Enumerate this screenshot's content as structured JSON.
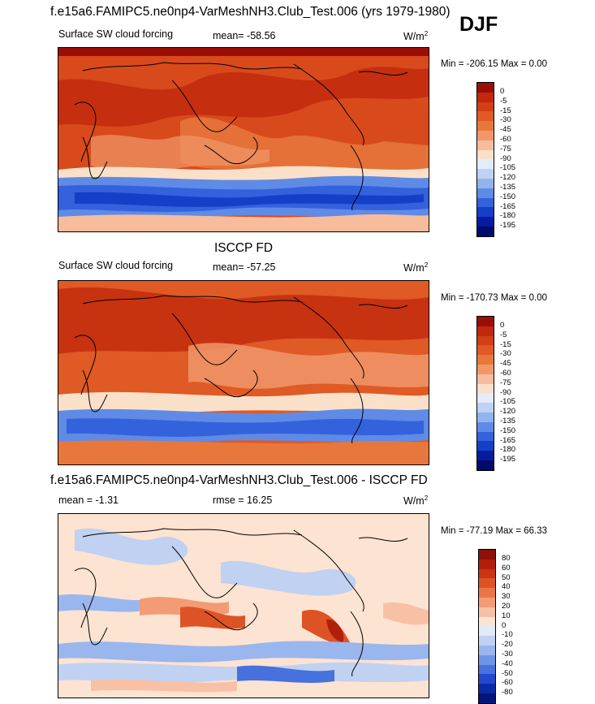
{
  "header": {
    "title": "f.e15a6.FAMIPC5.ne0np4-VarMeshNH3.Club_Test.006 (yrs 1979-1980)",
    "season": "DJF"
  },
  "panels": [
    {
      "heading": "",
      "left_label": "Surface SW cloud forcing",
      "mid_label": "mean= -58.56",
      "units": "W/m",
      "units_sup": "2",
      "minmax": "Min = -206.15 Max =   0.00",
      "colorbar_labels": [
        "0",
        "-5",
        "-15",
        "-30",
        "-45",
        "-60",
        "-75",
        "-90",
        "-105",
        "-120",
        "-135",
        "-150",
        "-165",
        "-180",
        "-195"
      ]
    },
    {
      "heading": "ISCCP FD",
      "left_label": "Surface SW cloud forcing",
      "mid_label": "mean= -57.25",
      "units": "W/m",
      "units_sup": "2",
      "minmax": "Min = -170.73 Max =   0.00",
      "colorbar_labels": [
        "0",
        "-5",
        "-15",
        "-30",
        "-45",
        "-60",
        "-75",
        "-90",
        "-105",
        "-120",
        "-135",
        "-150",
        "-165",
        "-180",
        "-195"
      ]
    },
    {
      "heading": "f.e15a6.FAMIPC5.ne0np4-VarMeshNH3.Club_Test.006 - ISCCP FD",
      "left_label": "mean =  -1.31",
      "mid_label": "rmse =  16.25",
      "units": "W/m",
      "units_sup": "2",
      "minmax": "Min = -77.19 Max =  66.33",
      "colorbar_labels": [
        "80",
        "60",
        "50",
        "40",
        "30",
        "20",
        "10",
        "0",
        "-10",
        "-20",
        "-30",
        "-40",
        "-50",
        "-60",
        "-80"
      ]
    }
  ],
  "colors": {
    "forcing_scale": [
      "#9a0e06",
      "#c1280d",
      "#d23f14",
      "#df5a25",
      "#e8773d",
      "#f1976a",
      "#f7bc9c",
      "#fbe0c9",
      "#e3ecf8",
      "#bed3f3",
      "#93b3ef",
      "#5f8be6",
      "#3462dd",
      "#163fc8",
      "#061c9e",
      "#020b6b"
    ],
    "diff_scale": [
      "#8d1106",
      "#b11e0a",
      "#cc3412",
      "#de5325",
      "#ea7645",
      "#f39b74",
      "#f8c1a5",
      "#fde3d2",
      "#e2eaf8",
      "#c0d1f2",
      "#9ab6ee",
      "#6f94e5",
      "#4771dd",
      "#2249cc",
      "#0b2aa6",
      "#041478"
    ]
  },
  "chart_data": [
    {
      "type": "heatmap",
      "title": "Surface SW cloud forcing",
      "units": "W/m2",
      "mean": -58.56,
      "min": -206.15,
      "max": 0.0,
      "levels": [
        0,
        -5,
        -15,
        -30,
        -45,
        -60,
        -75,
        -90,
        -105,
        -120,
        -135,
        -150,
        -165,
        -180,
        -195
      ]
    },
    {
      "type": "heatmap",
      "title": "ISCCP FD — Surface SW cloud forcing",
      "units": "W/m2",
      "mean": -57.25,
      "min": -170.73,
      "max": 0.0,
      "levels": [
        0,
        -5,
        -15,
        -30,
        -45,
        -60,
        -75,
        -90,
        -105,
        -120,
        -135,
        -150,
        -165,
        -180,
        -195
      ]
    },
    {
      "type": "heatmap",
      "title": "f.e15a6.FAMIPC5.ne0np4-VarMeshNH3.Club_Test.006 - ISCCP FD",
      "units": "W/m2",
      "mean": -1.31,
      "rmse": 16.25,
      "min": -77.19,
      "max": 66.33,
      "levels": [
        80,
        60,
        50,
        40,
        30,
        20,
        10,
        0,
        -10,
        -20,
        -30,
        -40,
        -50,
        -60,
        -80
      ]
    }
  ]
}
